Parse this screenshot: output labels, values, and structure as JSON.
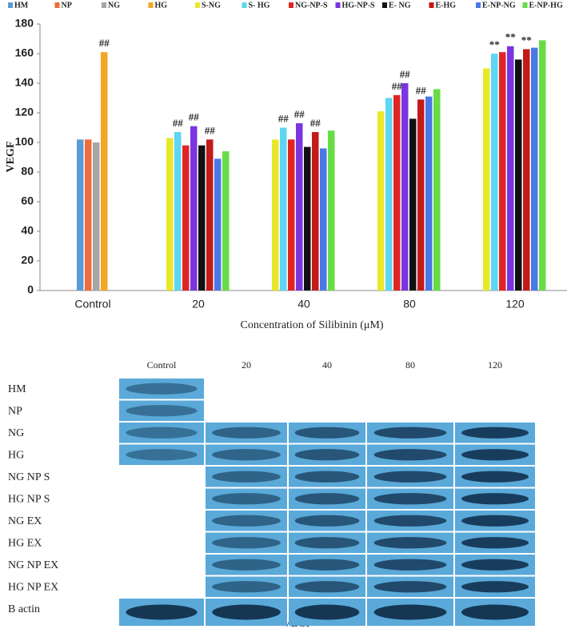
{
  "chart_data": {
    "type": "bar",
    "categories": [
      "Control",
      "20",
      "40",
      "80",
      "120"
    ],
    "series": [
      {
        "name": "HM",
        "color": "#5b9bd5",
        "values": [
          102,
          null,
          null,
          null,
          null
        ]
      },
      {
        "name": "NP",
        "color": "#ed6d3a",
        "values": [
          102,
          null,
          null,
          null,
          null
        ]
      },
      {
        "name": "NG",
        "color": "#a5a5a5",
        "values": [
          100,
          null,
          null,
          null,
          null
        ]
      },
      {
        "name": "HG",
        "color": "#f5a623",
        "values": [
          161,
          null,
          null,
          null,
          null
        ]
      },
      {
        "name": "S-NG",
        "color": "#e8e82a",
        "values": [
          null,
          103,
          102,
          121,
          150
        ]
      },
      {
        "name": "S- HG",
        "color": "#5cd6f2",
        "values": [
          null,
          107,
          110,
          130,
          160
        ]
      },
      {
        "name": "NG-NP-S",
        "color": "#e02424",
        "values": [
          null,
          98,
          102,
          132,
          161
        ]
      },
      {
        "name": "HG-NP-S",
        "color": "#7a35e0",
        "values": [
          null,
          111,
          113,
          140,
          165
        ]
      },
      {
        "name": "E- NG",
        "color": "#111111",
        "values": [
          null,
          98,
          97,
          116,
          156
        ]
      },
      {
        "name": "E-HG",
        "color": "#c41a1a",
        "values": [
          null,
          102,
          107,
          129,
          163
        ]
      },
      {
        "name": "E-NP-NG",
        "color": "#4a78e6",
        "values": [
          null,
          89,
          96,
          131,
          164
        ]
      },
      {
        "name": "E-NP-HG",
        "color": "#66dd44",
        "values": [
          null,
          94,
          108,
          136,
          169
        ]
      }
    ],
    "ylim": [
      0,
      180
    ],
    "yticks": [
      0,
      20,
      40,
      60,
      80,
      100,
      120,
      140,
      160,
      180
    ],
    "ylabel": "VEGF",
    "xlabel": "Concentration of Silibinin (μM)",
    "legend": "top",
    "annotations": [
      {
        "text": "##",
        "category": "Control",
        "series": "HG"
      },
      {
        "text": "##",
        "category": "20",
        "series": "S- HG"
      },
      {
        "text": "##",
        "category": "20",
        "series": "HG-NP-S"
      },
      {
        "text": "##",
        "category": "20",
        "series": "E-HG"
      },
      {
        "text": "##",
        "category": "40",
        "series": "S- HG"
      },
      {
        "text": "##",
        "category": "40",
        "series": "HG-NP-S"
      },
      {
        "text": "##",
        "category": "40",
        "series": "E-HG"
      },
      {
        "text": "##",
        "category": "80",
        "series": "NG-NP-S"
      },
      {
        "text": "##",
        "category": "80",
        "series": "HG-NP-S"
      },
      {
        "text": "##",
        "category": "80",
        "series": "E-HG"
      },
      {
        "text": "**",
        "category": "120",
        "series": "S- HG"
      },
      {
        "text": "**",
        "category": "120",
        "series": "HG-NP-S"
      },
      {
        "text": "**",
        "category": "120",
        "series": "E-HG"
      }
    ]
  },
  "blot": {
    "columns": [
      "Control",
      "20",
      "40",
      "80",
      "120"
    ],
    "rows": [
      "HM",
      "NP",
      "NG",
      "HG",
      "NG NP S",
      "HG NP S",
      "NG EX",
      "HG EX",
      "NG NP EX",
      "HG NP EX",
      "B actin"
    ],
    "caption": "VEGF"
  }
}
